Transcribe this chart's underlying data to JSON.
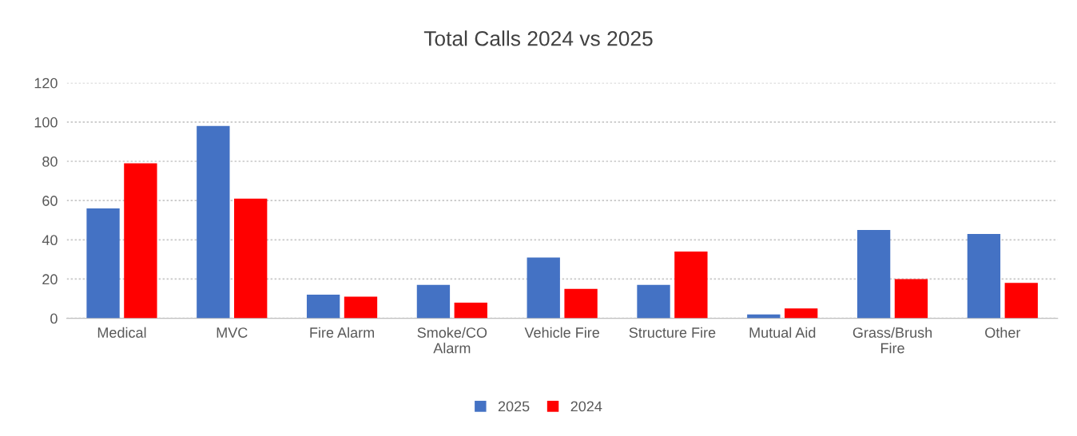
{
  "chart_data": {
    "type": "bar",
    "title": "Total Calls 2024 vs 2025",
    "categories": [
      "Medical",
      "MVC",
      "Fire Alarm",
      "Smoke/CO\nAlarm",
      "Vehicle Fire",
      "Structure Fire",
      "Mutual Aid",
      "Grass/Brush\nFire",
      "Other"
    ],
    "series": [
      {
        "name": "2025",
        "color": "#4472c4",
        "values": [
          56,
          98,
          12,
          17,
          31,
          17,
          2,
          45,
          43
        ]
      },
      {
        "name": "2024",
        "color": "#ff0000",
        "values": [
          79,
          61,
          11,
          8,
          15,
          34,
          5,
          20,
          18
        ]
      }
    ],
    "ylim": [
      0,
      120
    ],
    "yticks": [
      0,
      20,
      40,
      60,
      80,
      100,
      120
    ],
    "grid": "y",
    "legend": "bottom"
  }
}
